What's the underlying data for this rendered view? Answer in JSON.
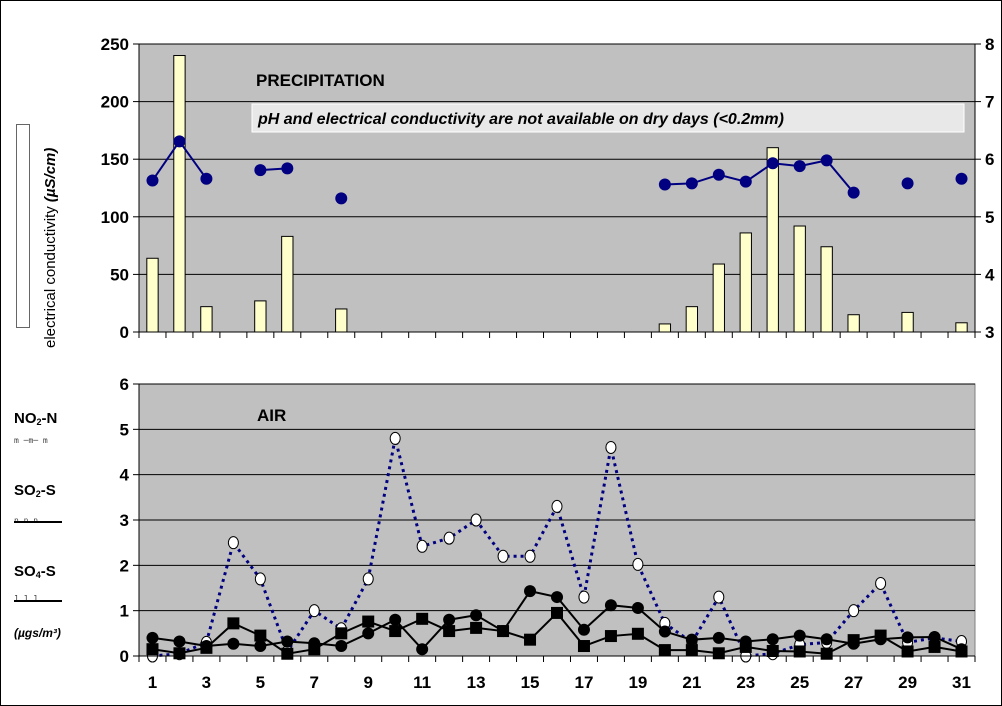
{
  "chart_data": [
    {
      "type": "bar",
      "title": "PRECIPITATION",
      "annotation": "pH and electrical conductivity are not available on dry days (<0.2mm)",
      "ylabel": "electrical conductivity",
      "ylabel_unit": "(µS/cm)",
      "ylim": [
        0,
        250
      ],
      "y2lim": [
        3,
        8
      ],
      "grid": true,
      "x": [
        1,
        2,
        3,
        4,
        5,
        6,
        7,
        8,
        9,
        10,
        11,
        12,
        13,
        14,
        15,
        16,
        17,
        18,
        19,
        20,
        21,
        22,
        23,
        24,
        25,
        26,
        27,
        28,
        29,
        30,
        31
      ],
      "y_ticks": [
        "0",
        "50",
        "100",
        "150",
        "200",
        "250"
      ],
      "y2_ticks": [
        "3",
        "4",
        "5",
        "6",
        "7",
        "8"
      ],
      "series": [
        {
          "kind": "bar",
          "axis": "left",
          "color": "#FFFFCC",
          "values": [
            64,
            240,
            22,
            null,
            27,
            83,
            null,
            20,
            null,
            null,
            null,
            null,
            null,
            null,
            null,
            null,
            null,
            null,
            null,
            7,
            22,
            59,
            86,
            160,
            92,
            74,
            15,
            null,
            17,
            null,
            8
          ]
        },
        {
          "kind": "line",
          "axis": "right",
          "color": "#000080",
          "values": [
            5.63,
            6.31,
            5.66,
            null,
            5.81,
            5.84,
            null,
            5.32,
            null,
            null,
            null,
            null,
            null,
            null,
            null,
            null,
            null,
            null,
            null,
            5.56,
            5.58,
            5.73,
            5.61,
            5.93,
            5.88,
            5.98,
            5.42,
            null,
            5.58,
            null,
            5.66
          ]
        }
      ]
    },
    {
      "type": "line",
      "title": "AIR",
      "ylim": [
        0,
        6
      ],
      "grid": true,
      "x_ticks": [
        "1",
        "3",
        "5",
        "7",
        "9",
        "11",
        "13",
        "15",
        "17",
        "19",
        "21",
        "23",
        "25",
        "27",
        "29",
        "31"
      ],
      "y_ticks": [
        "0",
        "1",
        "2",
        "3",
        "4",
        "5",
        "6"
      ],
      "x": [
        1,
        2,
        3,
        4,
        5,
        6,
        7,
        8,
        9,
        10,
        11,
        12,
        13,
        14,
        15,
        16,
        17,
        18,
        19,
        20,
        21,
        22,
        23,
        24,
        25,
        26,
        27,
        28,
        29,
        30,
        31
      ],
      "series": [
        {
          "name": "NO2-N",
          "marker": "open-circle",
          "style": "dotted",
          "color": "#000080",
          "values": [
            0.0,
            0.05,
            0.3,
            2.5,
            1.7,
            0.1,
            1.0,
            0.6,
            1.7,
            4.8,
            2.42,
            2.6,
            3.0,
            2.2,
            2.2,
            3.3,
            1.3,
            4.6,
            2.02,
            0.72,
            0.3,
            1.3,
            0.0,
            0.05,
            0.25,
            0.3,
            1.0,
            1.6,
            0.3,
            0.4,
            0.32
          ]
        },
        {
          "name": "SO2-S",
          "marker": "filled-circle",
          "style": "solid",
          "color": "#000000",
          "values": [
            0.4,
            0.32,
            0.22,
            0.27,
            0.22,
            0.32,
            0.28,
            0.22,
            0.5,
            0.8,
            0.15,
            0.8,
            0.9,
            0.55,
            1.43,
            1.3,
            0.58,
            1.12,
            1.06,
            0.54,
            0.36,
            0.4,
            0.32,
            0.37,
            0.45,
            0.37,
            0.27,
            0.37,
            0.41,
            0.42,
            0.15
          ]
        },
        {
          "name": "SO4-S",
          "marker": "filled-square",
          "style": "solid",
          "color": "#000000",
          "values": [
            0.15,
            0.06,
            0.18,
            0.72,
            0.45,
            0.05,
            0.15,
            0.5,
            0.76,
            0.55,
            0.82,
            0.55,
            0.62,
            0.55,
            0.36,
            0.95,
            0.22,
            0.44,
            0.49,
            0.13,
            0.13,
            0.06,
            0.2,
            0.11,
            0.1,
            0.05,
            0.35,
            0.45,
            0.1,
            0.2,
            0.1
          ]
        }
      ],
      "legend_unit": "(µgs/m³)",
      "legend_glyphs": [
        "m ─m─ m",
        "n  n  n",
        "1 1 1"
      ]
    }
  ]
}
